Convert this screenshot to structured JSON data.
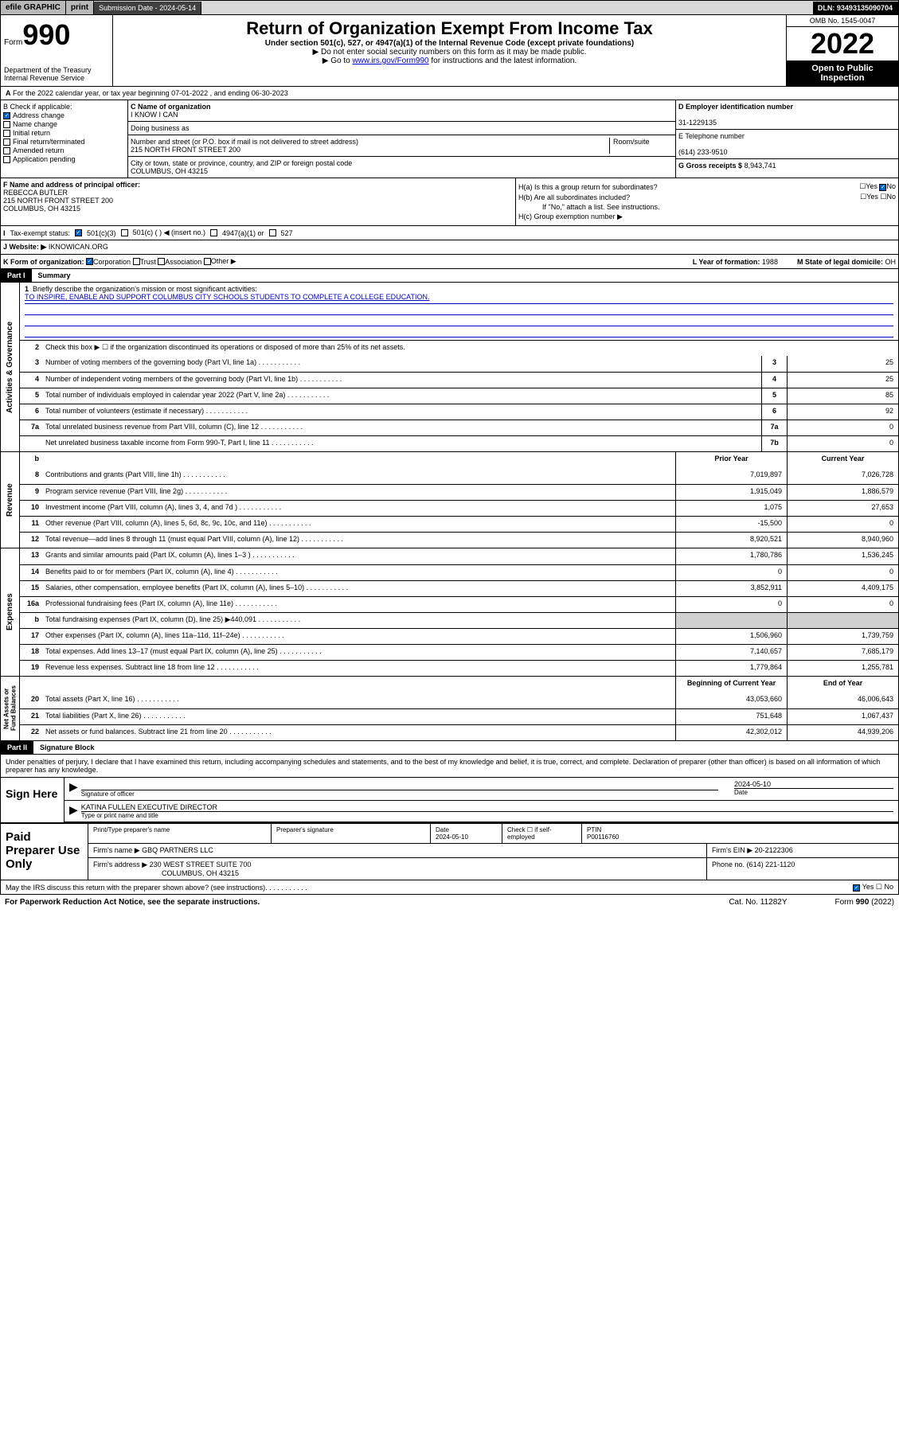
{
  "topbar": {
    "efile": "efile GRAPHIC",
    "print": "print",
    "submission_label": "Submission Date - 2024-05-14",
    "dln": "DLN: 93493135090704"
  },
  "header": {
    "form_label": "Form",
    "form_number": "990",
    "title": "Return of Organization Exempt From Income Tax",
    "subtitle": "Under section 501(c), 527, or 4947(a)(1) of the Internal Revenue Code (except private foundations)",
    "instruction1": "▶ Do not enter social security numbers on this form as it may be made public.",
    "instruction2_prefix": "▶ Go to ",
    "instruction2_link": "www.irs.gov/Form990",
    "instruction2_suffix": " for instructions and the latest information.",
    "omb": "OMB No. 1545-0047",
    "tax_year": "2022",
    "open_public": "Open to Public Inspection",
    "dept": "Department of the Treasury",
    "irs": "Internal Revenue Service"
  },
  "section_a": {
    "text": "For the 2022 calendar year, or tax year beginning 07-01-2022   , and ending 06-30-2023"
  },
  "section_b": {
    "label": "B Check if applicable:",
    "options": [
      "Address change",
      "Name change",
      "Initial return",
      "Final return/terminated",
      "Amended return",
      "Application pending"
    ],
    "checked_index": 0
  },
  "section_c": {
    "name_label": "C Name of organization",
    "name": "I KNOW I CAN",
    "dba_label": "Doing business as",
    "dba": "",
    "street_label": "Number and street (or P.O. box if mail is not delivered to street address)",
    "room_label": "Room/suite",
    "street": "215 NORTH FRONT STREET 200",
    "city_label": "City or town, state or province, country, and ZIP or foreign postal code",
    "city": "COLUMBUS, OH  43215"
  },
  "section_d": {
    "ein_label": "D Employer identification number",
    "ein": "31-1229135"
  },
  "section_e": {
    "phone_label": "E Telephone number",
    "phone": "(614) 233-9510"
  },
  "section_g": {
    "gross_label": "G Gross receipts $",
    "gross": "8,943,741"
  },
  "section_f": {
    "label": "F  Name and address of principal officer:",
    "name": "REBECCA BUTLER",
    "street": "215 NORTH FRONT STREET 200",
    "city": "COLUMBUS, OH  43215"
  },
  "section_h": {
    "ha_label": "H(a)  Is this a group return for subordinates?",
    "hb_label": "H(b)  Are all subordinates included?",
    "hb_note": "If \"No,\" attach a list. See instructions.",
    "hc_label": "H(c)  Group exemption number ▶",
    "yes": "Yes",
    "no": "No"
  },
  "section_i": {
    "label": "Tax-exempt status:",
    "opt1": "501(c)(3)",
    "opt2": "501(c) (  ) ◀ (insert no.)",
    "opt3": "4947(a)(1) or",
    "opt4": "527"
  },
  "section_j": {
    "label": "Website: ▶",
    "value": "IKNOWICAN.ORG"
  },
  "section_k": {
    "label": "K Form of organization:",
    "opts": [
      "Corporation",
      "Trust",
      "Association",
      "Other ▶"
    ],
    "l_label": "L Year of formation:",
    "l_value": "1988",
    "m_label": "M State of legal domicile:",
    "m_value": "OH"
  },
  "part1": {
    "header": "Part I",
    "title": "Summary",
    "line1_label": "Briefly describe the organization's mission or most significant activities:",
    "mission": "TO INSPIRE, ENABLE AND SUPPORT COLUMBUS CITY SCHOOLS STUDENTS TO COMPLETE A COLLEGE EDUCATION.",
    "line2": "Check this box ▶ ☐  if the organization discontinued its operations or disposed of more than 25% of its net assets.",
    "prior_year_hdr": "Prior Year",
    "current_year_hdr": "Current Year",
    "beg_year_hdr": "Beginning of Current Year",
    "end_year_hdr": "End of Year",
    "governance_rows": [
      {
        "n": "3",
        "text": "Number of voting members of the governing body (Part VI, line 1a)",
        "box": "3",
        "val": "25"
      },
      {
        "n": "4",
        "text": "Number of independent voting members of the governing body (Part VI, line 1b)",
        "box": "4",
        "val": "25"
      },
      {
        "n": "5",
        "text": "Total number of individuals employed in calendar year 2022 (Part V, line 2a)",
        "box": "5",
        "val": "85"
      },
      {
        "n": "6",
        "text": "Total number of volunteers (estimate if necessary)",
        "box": "6",
        "val": "92"
      },
      {
        "n": "7a",
        "text": "Total unrelated business revenue from Part VIII, column (C), line 12",
        "box": "7a",
        "val": "0"
      },
      {
        "n": "",
        "text": "Net unrelated business taxable income from Form 990-T, Part I, line 11",
        "box": "7b",
        "val": "0"
      }
    ],
    "revenue_rows": [
      {
        "n": "8",
        "text": "Contributions and grants (Part VIII, line 1h)",
        "prior": "7,019,897",
        "curr": "7,026,728"
      },
      {
        "n": "9",
        "text": "Program service revenue (Part VIII, line 2g)",
        "prior": "1,915,049",
        "curr": "1,886,579"
      },
      {
        "n": "10",
        "text": "Investment income (Part VIII, column (A), lines 3, 4, and 7d )",
        "prior": "1,075",
        "curr": "27,653"
      },
      {
        "n": "11",
        "text": "Other revenue (Part VIII, column (A), lines 5, 6d, 8c, 9c, 10c, and 11e)",
        "prior": "-15,500",
        "curr": "0"
      },
      {
        "n": "12",
        "text": "Total revenue—add lines 8 through 11 (must equal Part VIII, column (A), line 12)",
        "prior": "8,920,521",
        "curr": "8,940,960"
      }
    ],
    "expense_rows": [
      {
        "n": "13",
        "text": "Grants and similar amounts paid (Part IX, column (A), lines 1–3 )",
        "prior": "1,780,786",
        "curr": "1,536,245"
      },
      {
        "n": "14",
        "text": "Benefits paid to or for members (Part IX, column (A), line 4)",
        "prior": "0",
        "curr": "0"
      },
      {
        "n": "15",
        "text": "Salaries, other compensation, employee benefits (Part IX, column (A), lines 5–10)",
        "prior": "3,852,911",
        "curr": "4,409,175"
      },
      {
        "n": "16a",
        "text": "Professional fundraising fees (Part IX, column (A), line 11e)",
        "prior": "0",
        "curr": "0"
      },
      {
        "n": "b",
        "text": "Total fundraising expenses (Part IX, column (D), line 25) ▶440,091",
        "prior": "",
        "curr": "",
        "gray": true
      },
      {
        "n": "17",
        "text": "Other expenses (Part IX, column (A), lines 11a–11d, 11f–24e)",
        "prior": "1,506,960",
        "curr": "1,739,759"
      },
      {
        "n": "18",
        "text": "Total expenses. Add lines 13–17 (must equal Part IX, column (A), line 25)",
        "prior": "7,140,657",
        "curr": "7,685,179"
      },
      {
        "n": "19",
        "text": "Revenue less expenses. Subtract line 18 from line 12",
        "prior": "1,779,864",
        "curr": "1,255,781"
      }
    ],
    "netassets_rows": [
      {
        "n": "20",
        "text": "Total assets (Part X, line 16)",
        "prior": "43,053,660",
        "curr": "46,006,643"
      },
      {
        "n": "21",
        "text": "Total liabilities (Part X, line 26)",
        "prior": "751,648",
        "curr": "1,067,437"
      },
      {
        "n": "22",
        "text": "Net assets or fund balances. Subtract line 21 from line 20",
        "prior": "42,302,012",
        "curr": "44,939,206"
      }
    ]
  },
  "part2": {
    "header": "Part II",
    "title": "Signature Block",
    "intro": "Under penalties of perjury, I declare that I have examined this return, including accompanying schedules and statements, and to the best of my knowledge and belief, it is true, correct, and complete. Declaration of preparer (other than officer) is based on all information of which preparer has any knowledge.",
    "sign_here": "Sign Here",
    "sig_officer": "Signature of officer",
    "sig_date": "2024-05-10",
    "date_label": "Date",
    "officer_name": "KATINA FULLEN  EXECUTIVE DIRECTOR",
    "type_name_label": "Type or print name and title",
    "paid_prep": "Paid Preparer Use Only",
    "prep_name_label": "Print/Type preparer's name",
    "prep_sig_label": "Preparer's signature",
    "prep_date_label": "Date",
    "prep_date": "2024-05-10",
    "self_emp": "Check ☐ if self-employed",
    "ptin_label": "PTIN",
    "ptin": "P00116760",
    "firm_name_label": "Firm's name    ▶",
    "firm_name": "GBQ PARTNERS LLC",
    "firm_ein_label": "Firm's EIN ▶",
    "firm_ein": "20-2122306",
    "firm_addr_label": "Firm's address ▶",
    "firm_addr1": "230 WEST STREET SUITE 700",
    "firm_addr2": "COLUMBUS, OH  43215",
    "firm_phone_label": "Phone no.",
    "firm_phone": "(614) 221-1120",
    "discuss": "May the IRS discuss this return with the preparer shown above? (see instructions)",
    "paperwork": "For Paperwork Reduction Act Notice, see the separate instructions.",
    "cat": "Cat. No. 11282Y",
    "form_bottom": "Form 990 (2022)"
  }
}
